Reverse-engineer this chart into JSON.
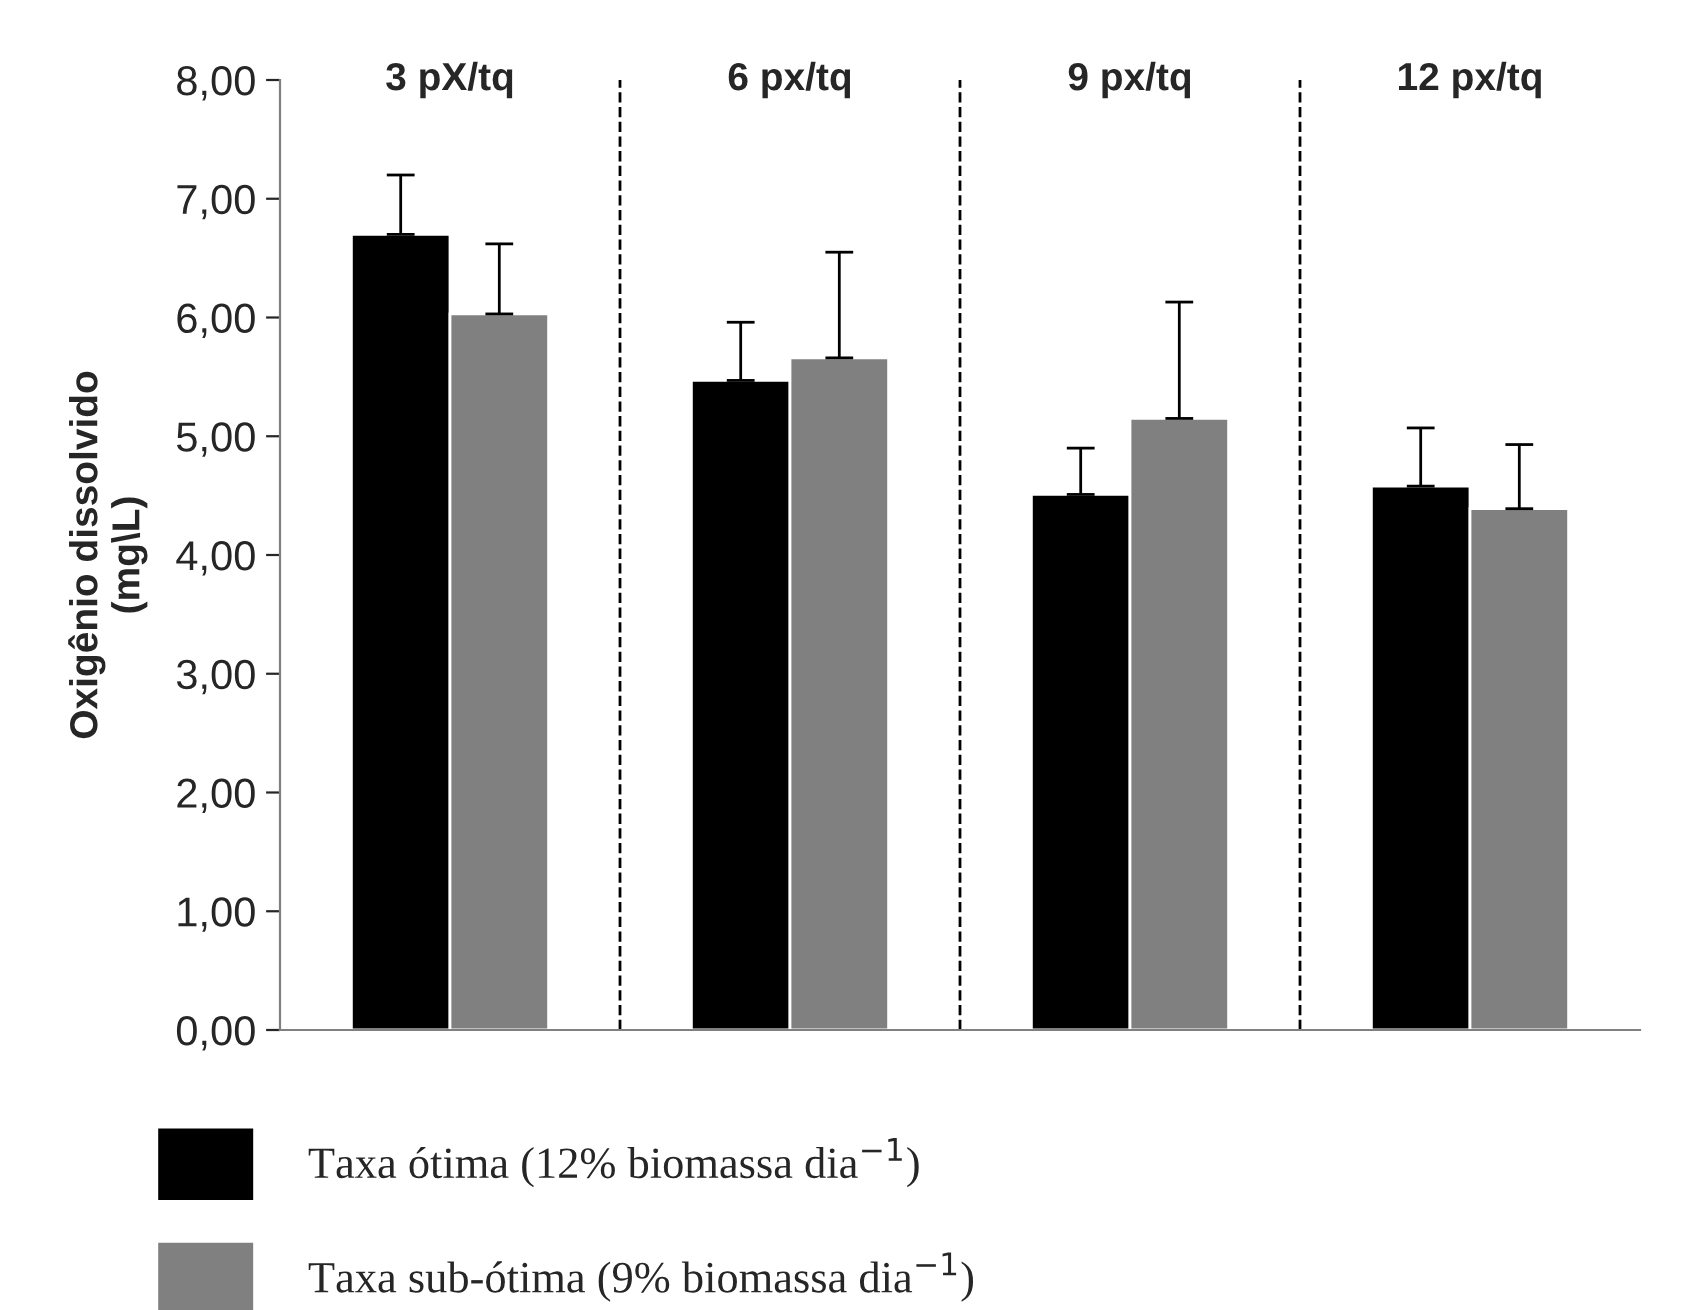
{
  "chart_data": {
    "type": "bar",
    "categories": [
      "3 pX/tq",
      "6 px/tq",
      "9 px/tq",
      "12 px/tq"
    ],
    "ylabel": "Oxigênio dissolvido\n(mg\\L)",
    "series": [
      {
        "name": "Taxa ótima (12% biomassa dia$^{−1}$)",
        "color": "#000000",
        "values": [
          6.7,
          5.47,
          4.51,
          4.58
        ],
        "errors": [
          [
            6.7,
            7.2
          ],
          [
            5.47,
            5.96
          ],
          [
            4.51,
            4.9
          ],
          [
            4.58,
            5.07
          ]
        ]
      },
      {
        "name": "Taxa sub-ótima (9% biomassa dia$^{−1}$)",
        "color": "#808080",
        "values": [
          6.03,
          5.66,
          5.15,
          4.39
        ],
        "errors": [
          [
            6.03,
            6.62
          ],
          [
            5.66,
            6.55
          ],
          [
            5.15,
            6.13
          ],
          [
            4.39,
            4.93
          ]
        ]
      }
    ],
    "ylim": [
      0,
      8
    ],
    "yticks": [
      {
        "value": 0,
        "label": "0,00"
      },
      {
        "value": 1,
        "label": "1,00"
      },
      {
        "value": 2,
        "label": "2,00"
      },
      {
        "value": 3,
        "label": "3,00"
      },
      {
        "value": 4,
        "label": "4,00"
      },
      {
        "value": 5,
        "label": "5,00"
      },
      {
        "value": 6,
        "label": "6,00"
      },
      {
        "value": 7,
        "label": "7,00"
      },
      {
        "value": 8,
        "label": "8,00"
      }
    ],
    "grid": false,
    "legend": "bottom"
  }
}
